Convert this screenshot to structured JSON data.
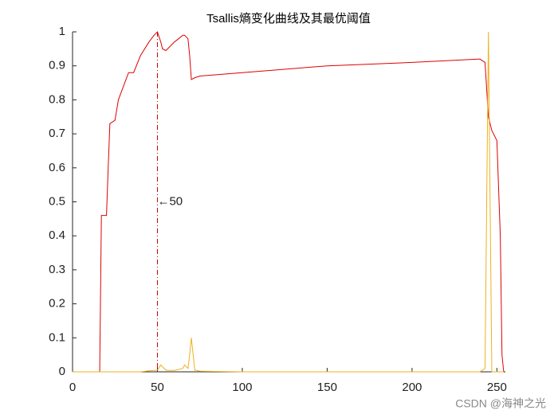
{
  "chart_data": {
    "type": "line",
    "title": "Tsallis熵变化曲线及其最优阈值",
    "x": [
      0,
      16,
      17,
      20,
      21,
      22,
      25,
      27,
      30,
      33,
      36,
      40,
      45,
      48,
      50,
      52,
      53,
      55,
      56,
      60,
      65,
      66,
      68,
      69,
      70,
      72,
      75,
      100,
      150,
      200,
      240,
      243,
      245,
      247,
      250,
      252,
      253,
      254
    ],
    "series": [
      {
        "color": "#e00000",
        "values": [
          0,
          0,
          0.46,
          0.46,
          0.6,
          0.73,
          0.74,
          0.8,
          0.84,
          0.88,
          0.88,
          0.93,
          0.97,
          0.99,
          1.0,
          0.97,
          0.95,
          0.945,
          0.95,
          0.97,
          0.99,
          0.99,
          0.98,
          0.93,
          0.86,
          0.865,
          0.87,
          0.88,
          0.9,
          0.91,
          0.92,
          0.91,
          0.75,
          0.71,
          0.68,
          0.4,
          0.05,
          0
        ]
      },
      {
        "color": "#edb120",
        "values": [
          0,
          0,
          0,
          0,
          0,
          0,
          0,
          0,
          0,
          0,
          0,
          0,
          0.003,
          0.004,
          0.005,
          0.02,
          0.015,
          0.005,
          0.004,
          0.004,
          0.01,
          0.02,
          0.01,
          0.05,
          0.1,
          0.005,
          0.002,
          0,
          0,
          0,
          0,
          0.01,
          1.0,
          0,
          0,
          0,
          0,
          0
        ]
      }
    ],
    "threshold": 50,
    "annotation": "←50",
    "xlim": [
      0,
      255
    ],
    "xticks": [
      0,
      50,
      100,
      150,
      200,
      250
    ],
    "ylim": [
      0,
      1
    ],
    "yticks": [
      0,
      0.1,
      0.2,
      0.3,
      0.4,
      0.5,
      0.6,
      0.7,
      0.8,
      0.9,
      1
    ],
    "watermark": "CSDN @海神之光"
  }
}
